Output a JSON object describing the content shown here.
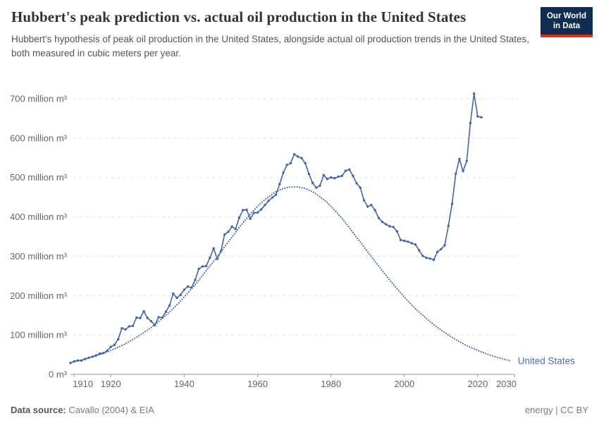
{
  "header": {
    "title": "Hubbert's peak prediction vs. actual oil production in the United States",
    "subtitle": "Hubbert's hypothesis of peak oil production in the United States, alongside actual oil production trends in the United States, both measured in cubic meters per year.",
    "logo": {
      "line1": "Our World",
      "line2": "in Data",
      "bg_color": "#0E2D51",
      "accent_color": "#DC3012"
    }
  },
  "footer": {
    "source_label": "Data source:",
    "source_value": " Cavallo (2004) & EIA",
    "license_text": "energy | CC BY"
  },
  "chart_data": {
    "type": "line",
    "title": "Hubbert's peak prediction vs. actual oil production in the United States",
    "unit": "cubic meters per year",
    "x_range": [
      1909,
      2030
    ],
    "y_range": [
      0,
      700
    ],
    "grid": true,
    "x_ticks": [
      1910,
      1920,
      1940,
      1960,
      1980,
      2000,
      2020,
      2030
    ],
    "x_tick_labels": [
      "1910",
      "1920",
      "1940",
      "1960",
      "1980",
      "2000",
      "2020",
      "2030"
    ],
    "y_ticks": [
      0,
      100,
      200,
      300,
      400,
      500,
      600,
      700
    ],
    "y_tick_labels": [
      "0 m³",
      "100 million m³",
      "200 million m³",
      "300 million m³",
      "400 million m³",
      "500 million m³",
      "600 million m³",
      "700 million m³"
    ],
    "legend_label": "United States",
    "legend_position": "end-of-line",
    "colors": {
      "series": "#4464A4",
      "legend_text": "#4C6EA9",
      "grid": "#E2E2E2",
      "axis": "#9A9A9A",
      "tick_text": "#666666"
    },
    "series": [
      {
        "name": "United States actual oil production (million m³)",
        "style": "solid",
        "markers": true,
        "start_year": 1909,
        "step": 1,
        "values": [
          29,
          33,
          35,
          35,
          39,
          42,
          45,
          48,
          53,
          54,
          60,
          70,
          75,
          89,
          117,
          114,
          122,
          123,
          144,
          143,
          160,
          143,
          135,
          125,
          145,
          144,
          159,
          175,
          205,
          194,
          202,
          215,
          223,
          220,
          240,
          268,
          274,
          275,
          296,
          320,
          293,
          313,
          355,
          362,
          375,
          369,
          398,
          417,
          418,
          395,
          410,
          411,
          419,
          430,
          441,
          449,
          456,
          483,
          512,
          532,
          536,
          559,
          553,
          549,
          536,
          509,
          486,
          474,
          479,
          506,
          496,
          500,
          498,
          502,
          504,
          517,
          520,
          504,
          485,
          474,
          442,
          426,
          430,
          417,
          397,
          387,
          381,
          376,
          374,
          363,
          341,
          339,
          337,
          333,
          330,
          315,
          301,
          296,
          294,
          291,
          311,
          318,
          328,
          377,
          433,
          509,
          547,
          516,
          542,
          638,
          713,
          655,
          653
        ]
      },
      {
        "name": "Hubbert's peak prediction (million m³)",
        "style": "dotted",
        "markers": false,
        "start_year": 1909,
        "step": 2,
        "values": [
          30,
          34,
          39,
          44,
          50,
          57,
          65,
          73,
          83,
          94,
          106,
          119,
          134,
          150,
          167,
          186,
          207,
          228,
          251,
          275,
          299,
          324,
          348,
          373,
          396,
          417,
          436,
          451,
          464,
          472,
          476,
          476,
          472,
          464,
          451,
          436,
          417,
          396,
          373,
          348,
          324,
          299,
          275,
          251,
          228,
          207,
          186,
          167,
          150,
          134,
          119,
          106,
          94,
          83,
          73,
          65,
          57,
          50,
          44,
          39,
          34
        ]
      }
    ]
  }
}
